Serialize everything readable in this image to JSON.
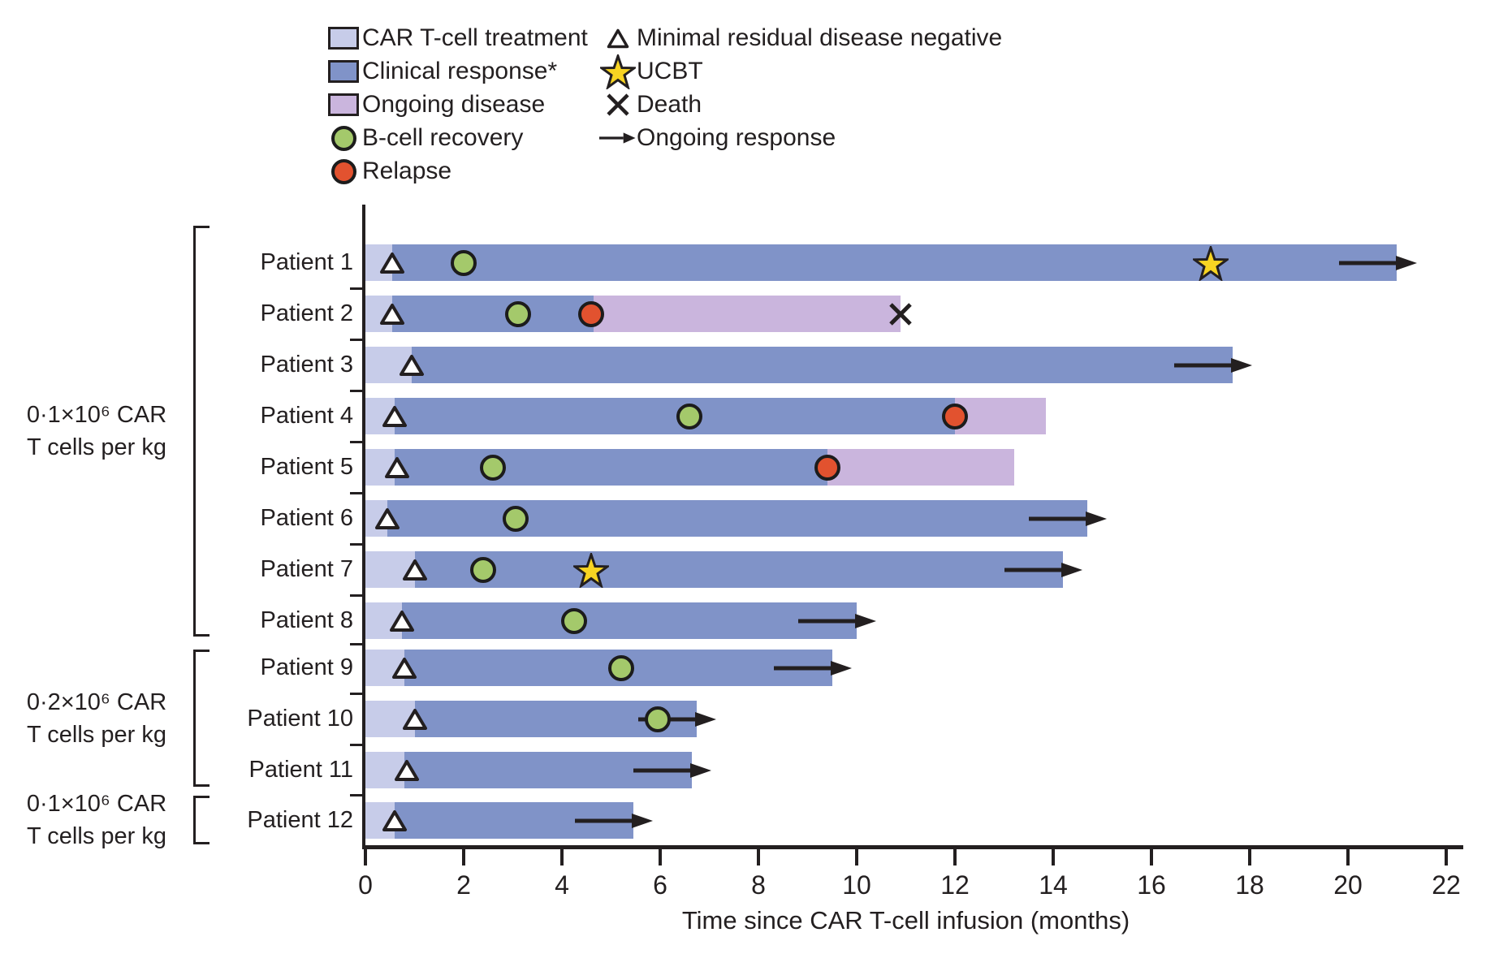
{
  "legend": {
    "left": [
      {
        "name": "car-t-cell-treatment",
        "marker": "swatch",
        "color": "#c7cce9",
        "label": "CAR T-cell treatment"
      },
      {
        "name": "clinical-response",
        "marker": "swatch",
        "color": "#8093c8",
        "label": "Clinical response*"
      },
      {
        "name": "ongoing-disease",
        "marker": "swatch",
        "color": "#cab5dd",
        "label": "Ongoing disease"
      },
      {
        "name": "b-cell-recovery",
        "marker": "circle",
        "color": "#a4c96b",
        "label": "B-cell recovery"
      },
      {
        "name": "relapse",
        "marker": "circle",
        "color": "#e2522f",
        "label": "Relapse"
      }
    ],
    "right": [
      {
        "name": "mrd-negative",
        "marker": "triangle",
        "color": "#ffffff",
        "label": "Minimal residual disease negative"
      },
      {
        "name": "ucbt",
        "marker": "star",
        "color": "#f8d422",
        "label": "UCBT"
      },
      {
        "name": "death",
        "marker": "cross",
        "color": "#231f20",
        "label": "Death"
      },
      {
        "name": "ongoing-response",
        "marker": "arrow",
        "color": "#231f20",
        "label": "Ongoing response"
      }
    ]
  },
  "chart_data": {
    "type": "swimmer-bar-horizontal",
    "x_axis": {
      "label": "Time since CAR T-cell infusion (months)",
      "min": 0,
      "max": 22,
      "tick_step": 2,
      "ticks": [
        0,
        2,
        4,
        6,
        8,
        10,
        12,
        14,
        16,
        18,
        20,
        22
      ]
    },
    "colors": {
      "car_t_treatment": "#c7cce9",
      "clinical_response": "#8093c8",
      "ongoing_disease": "#cab5dd",
      "b_cell_recovery": "#a4c96b",
      "relapse": "#e2522f",
      "ucbt_star": "#f8d422",
      "ink": "#231f20"
    },
    "groups": [
      {
        "dose_line1": "0·1×10⁶ CAR",
        "dose_line2": "T cells per kg",
        "patient_range": [
          1,
          8
        ]
      },
      {
        "dose_line1": "0·2×10⁶ CAR",
        "dose_line2": "T cells per kg",
        "patient_range": [
          9,
          11
        ]
      },
      {
        "dose_line1": "0·1×10⁶ CAR",
        "dose_line2": "T cells per kg",
        "patient_range": [
          12,
          12
        ]
      }
    ],
    "patients": [
      {
        "label": "Patient 1",
        "car_t_end": 0.55,
        "response_end": 21.0,
        "mrd_negative": 0.55,
        "b_cell_recovery": 2.0,
        "ucbt": 17.2,
        "ongoing": true
      },
      {
        "label": "Patient 2",
        "car_t_end": 0.55,
        "response_end": 4.65,
        "disease_end": 10.9,
        "mrd_negative": 0.55,
        "b_cell_recovery": 3.1,
        "relapse": 4.6,
        "death": 10.9
      },
      {
        "label": "Patient 3",
        "car_t_end": 0.95,
        "response_end": 17.65,
        "mrd_negative": 0.95,
        "ongoing": true
      },
      {
        "label": "Patient 4",
        "car_t_end": 0.6,
        "response_end": 12.0,
        "disease_end": 13.85,
        "mrd_negative": 0.6,
        "b_cell_recovery": 6.6,
        "relapse": 12.0
      },
      {
        "label": "Patient 5",
        "car_t_end": 0.6,
        "response_end": 9.4,
        "disease_end": 13.2,
        "mrd_negative": 0.65,
        "b_cell_recovery": 2.6,
        "relapse": 9.4
      },
      {
        "label": "Patient 6",
        "car_t_end": 0.45,
        "response_end": 14.7,
        "mrd_negative": 0.45,
        "b_cell_recovery": 3.05,
        "ongoing": true
      },
      {
        "label": "Patient 7",
        "car_t_end": 1.0,
        "response_end": 14.2,
        "mrd_negative": 1.0,
        "b_cell_recovery": 2.4,
        "ucbt": 4.6,
        "ongoing": true
      },
      {
        "label": "Patient 8",
        "car_t_end": 0.75,
        "response_end": 10.0,
        "mrd_negative": 0.75,
        "b_cell_recovery": 4.25,
        "ongoing": true
      },
      {
        "label": "Patient 9",
        "car_t_end": 0.8,
        "response_end": 9.5,
        "mrd_negative": 0.8,
        "b_cell_recovery": 5.2,
        "ongoing": true
      },
      {
        "label": "Patient 10",
        "car_t_end": 1.0,
        "response_end": 6.75,
        "mrd_negative": 1.0,
        "b_cell_recovery": 5.95,
        "ongoing": true
      },
      {
        "label": "Patient 11",
        "car_t_end": 0.8,
        "response_end": 6.65,
        "mrd_negative": 0.85,
        "ongoing": true
      },
      {
        "label": "Patient 12",
        "car_t_end": 0.6,
        "response_end": 5.45,
        "mrd_negative": 0.6,
        "ongoing": true
      }
    ]
  }
}
